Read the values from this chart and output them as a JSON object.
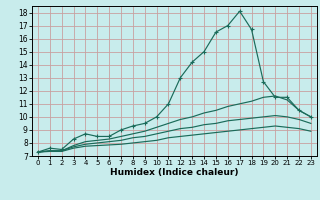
{
  "xlabel": "Humidex (Indice chaleur)",
  "background_color": "#c8ecec",
  "grid_color": "#c8a0a0",
  "line_color": "#1a6b5a",
  "xlim": [
    -0.5,
    23.5
  ],
  "ylim": [
    7,
    18.5
  ],
  "xticks": [
    0,
    1,
    2,
    3,
    4,
    5,
    6,
    7,
    8,
    9,
    10,
    11,
    12,
    13,
    14,
    15,
    16,
    17,
    18,
    19,
    20,
    21,
    22,
    23
  ],
  "yticks": [
    7,
    8,
    9,
    10,
    11,
    12,
    13,
    14,
    15,
    16,
    17,
    18
  ],
  "line1_x": [
    0,
    1,
    2,
    3,
    4,
    5,
    6,
    7,
    8,
    9,
    10,
    11,
    12,
    13,
    14,
    15,
    16,
    17,
    18,
    19,
    20,
    21,
    22,
    23
  ],
  "line1_y": [
    7.3,
    7.6,
    7.5,
    8.3,
    8.7,
    8.5,
    8.5,
    9.0,
    9.3,
    9.5,
    10.0,
    11.0,
    13.0,
    14.2,
    15.0,
    16.5,
    17.0,
    18.1,
    16.7,
    12.7,
    11.5,
    11.5,
    10.5,
    10.0
  ],
  "line2_x": [
    0,
    1,
    2,
    3,
    4,
    5,
    6,
    7,
    8,
    9,
    10,
    11,
    12,
    13,
    14,
    15,
    16,
    17,
    18,
    19,
    20,
    21,
    22,
    23
  ],
  "line2_y": [
    7.3,
    7.4,
    7.4,
    7.8,
    8.1,
    8.2,
    8.3,
    8.5,
    8.7,
    8.9,
    9.2,
    9.5,
    9.8,
    10.0,
    10.3,
    10.5,
    10.8,
    11.0,
    11.2,
    11.5,
    11.6,
    11.3,
    10.5,
    10.0
  ],
  "line3_x": [
    0,
    1,
    2,
    3,
    4,
    5,
    6,
    7,
    8,
    9,
    10,
    11,
    12,
    13,
    14,
    15,
    16,
    17,
    18,
    19,
    20,
    21,
    22,
    23
  ],
  "line3_y": [
    7.3,
    7.4,
    7.4,
    7.7,
    7.9,
    8.0,
    8.1,
    8.2,
    8.4,
    8.5,
    8.7,
    8.9,
    9.1,
    9.2,
    9.4,
    9.5,
    9.7,
    9.8,
    9.9,
    10.0,
    10.1,
    10.0,
    9.8,
    9.5
  ],
  "line4_x": [
    0,
    1,
    2,
    3,
    4,
    5,
    6,
    7,
    8,
    9,
    10,
    11,
    12,
    13,
    14,
    15,
    16,
    17,
    18,
    19,
    20,
    21,
    22,
    23
  ],
  "line4_y": [
    7.3,
    7.35,
    7.35,
    7.6,
    7.75,
    7.8,
    7.85,
    7.9,
    8.0,
    8.1,
    8.2,
    8.4,
    8.5,
    8.6,
    8.7,
    8.8,
    8.9,
    9.0,
    9.1,
    9.2,
    9.3,
    9.2,
    9.1,
    8.9
  ],
  "figsize": [
    3.2,
    2.0
  ],
  "dpi": 100
}
